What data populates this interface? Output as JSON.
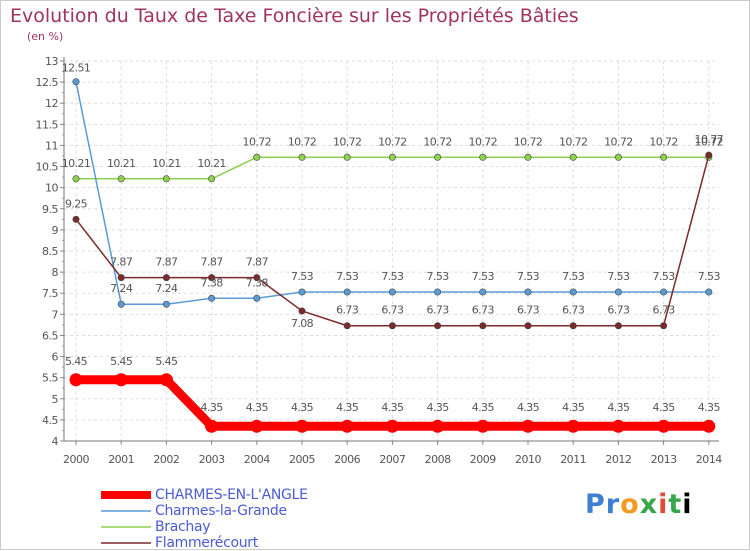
{
  "header": {
    "title": "Evolution du Taux de Taxe Foncière sur les Propriétés Bâties",
    "subtitle": "(en %)"
  },
  "logo": {
    "text": "Proxiti"
  },
  "chart_data": {
    "type": "line",
    "title": "Evolution du Taux de Taxe Foncière sur les Propriétés Bâties",
    "ylabel": "(en %)",
    "xlabel": "",
    "ylim": [
      4,
      13
    ],
    "y_ticks": [
      4,
      4.5,
      5,
      5.5,
      6,
      6.5,
      7,
      7.5,
      8,
      8.5,
      9,
      9.5,
      10,
      10.5,
      11,
      11.5,
      12,
      12.5,
      13
    ],
    "y_tick_labels": [
      "4",
      "4.5",
      "5",
      "5.5",
      "6",
      "6.5",
      "7",
      "7.5",
      "8",
      "8.5",
      "9",
      "9.5",
      "10",
      "10.5",
      "11",
      "11.5",
      "12",
      "12.5",
      "13"
    ],
    "categories": [
      "2000",
      "2001",
      "2002",
      "2003",
      "2004",
      "2005",
      "2006",
      "2007",
      "2008",
      "2009",
      "2010",
      "2011",
      "2012",
      "2013",
      "2014"
    ],
    "grid": true,
    "legend_position": "bottom-left",
    "series": [
      {
        "name": "CHARMES-EN-L'ANGLE",
        "color": "#ff0000",
        "emphasis": true,
        "values": [
          5.45,
          5.45,
          5.45,
          4.35,
          4.35,
          4.35,
          4.35,
          4.35,
          4.35,
          4.35,
          4.35,
          4.35,
          4.35,
          4.35,
          4.35
        ],
        "labels": [
          "5.45",
          "5.45",
          "5.45",
          "4.35",
          "4.35",
          "4.35",
          "4.35",
          "4.35",
          "4.35",
          "4.35",
          "4.35",
          "4.35",
          "4.35",
          "4.35",
          "4.35"
        ]
      },
      {
        "name": "Charmes-la-Grande",
        "color": "#5b9bd5",
        "values": [
          12.51,
          7.24,
          7.24,
          7.38,
          7.38,
          7.53,
          7.53,
          7.53,
          7.53,
          7.53,
          7.53,
          7.53,
          7.53,
          7.53,
          7.53
        ],
        "labels": [
          "12.51",
          "7.24",
          "7.24",
          "7.38",
          "7.38",
          "7.53",
          "7.53",
          "7.53",
          "7.53",
          "7.53",
          "7.53",
          "7.53",
          "7.53",
          "7.53",
          "7.53"
        ]
      },
      {
        "name": "Brachay",
        "color": "#8fd14f",
        "values": [
          10.21,
          10.21,
          10.21,
          10.21,
          10.72,
          10.72,
          10.72,
          10.72,
          10.72,
          10.72,
          10.72,
          10.72,
          10.72,
          10.72,
          10.72
        ],
        "labels": [
          "10.21",
          "10.21",
          "10.21",
          "10.21",
          "10.72",
          "10.72",
          "10.72",
          "10.72",
          "10.72",
          "10.72",
          "10.72",
          "10.72",
          "10.72",
          "10.72",
          "10.72"
        ]
      },
      {
        "name": "Flammerécourt",
        "color": "#7b2a2a",
        "values": [
          9.25,
          7.87,
          7.87,
          7.87,
          7.87,
          7.08,
          6.73,
          6.73,
          6.73,
          6.73,
          6.73,
          6.73,
          6.73,
          6.73,
          10.77
        ],
        "labels": [
          "9.25",
          "7.87",
          "7.87",
          "7.87",
          "7.87",
          "7.08",
          "6.73",
          "6.73",
          "6.73",
          "6.73",
          "6.73",
          "6.73",
          "6.73",
          "6.73",
          "10.77"
        ]
      }
    ]
  }
}
